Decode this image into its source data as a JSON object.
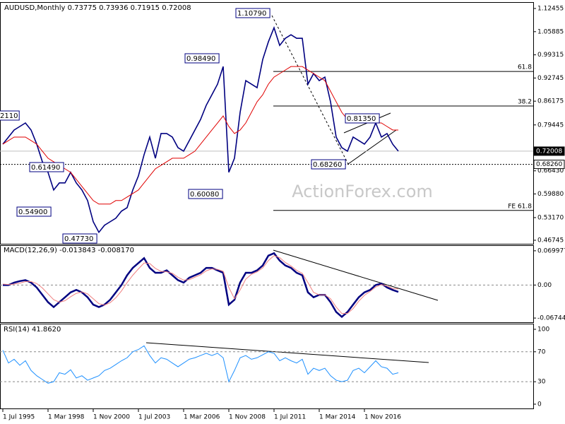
{
  "chart_data": [
    {
      "type": "line",
      "title": "AUDUSD,Monthly  0.73775 0.73936 0.71915 0.72008",
      "watermark": "ActionForex.com",
      "ylim": [
        0.4574,
        1.1406
      ],
      "yticks": [
        1.12455,
        1.05885,
        0.99315,
        0.92745,
        0.86175,
        0.79445,
        {
          "value": 0.6643,
          "label": "0.66430"
        },
        {
          "value": 0.5988,
          "label": "0.59880"
        },
        {
          "value": 0.5317,
          "label": "0.53170"
        },
        0.46745
      ],
      "series": [
        {
          "color": "#000080",
          "values": [
            0.74,
            0.76,
            0.78,
            0.79,
            0.8,
            0.78,
            0.74,
            0.69,
            0.66,
            0.61,
            0.63,
            0.63,
            0.66,
            0.63,
            0.61,
            0.58,
            0.52,
            0.49,
            0.51,
            0.52,
            0.53,
            0.55,
            0.56,
            0.61,
            0.65,
            0.71,
            0.76,
            0.7,
            0.77,
            0.77,
            0.76,
            0.73,
            0.72,
            0.75,
            0.78,
            0.81,
            0.85,
            0.88,
            0.91,
            0.96,
            0.66,
            0.7,
            0.83,
            0.92,
            0.91,
            0.9,
            0.98,
            1.03,
            1.07,
            1.02,
            1.04,
            1.05,
            1.04,
            1.04,
            0.91,
            0.94,
            0.92,
            0.93,
            0.86,
            0.76,
            0.73,
            0.72,
            0.76,
            0.75,
            0.74,
            0.76,
            0.8,
            0.76,
            0.77,
            0.74,
            0.72
          ]
        },
        {
          "color": "#e00000",
          "values": [
            0.74,
            0.75,
            0.76,
            0.76,
            0.76,
            0.75,
            0.74,
            0.72,
            0.7,
            0.69,
            0.68,
            0.67,
            0.66,
            0.64,
            0.62,
            0.6,
            0.58,
            0.57,
            0.57,
            0.57,
            0.58,
            0.58,
            0.59,
            0.6,
            0.61,
            0.63,
            0.65,
            0.67,
            0.68,
            0.69,
            0.7,
            0.7,
            0.7,
            0.71,
            0.72,
            0.74,
            0.76,
            0.78,
            0.8,
            0.82,
            0.79,
            0.77,
            0.78,
            0.8,
            0.83,
            0.86,
            0.88,
            0.91,
            0.93,
            0.94,
            0.95,
            0.96,
            0.96,
            0.96,
            0.95,
            0.94,
            0.93,
            0.92,
            0.89,
            0.86,
            0.83,
            0.81,
            0.8,
            0.8,
            0.8,
            0.8,
            0.8,
            0.8,
            0.79,
            0.78,
            0.78
          ]
        }
      ],
      "levels": [
        {
          "value": 0.946,
          "label": "61.8"
        },
        {
          "value": 0.848,
          "label": "38.2"
        },
        {
          "value": 0.552,
          "label": "FE 61.8"
        }
      ],
      "price_lines": [
        {
          "value": 0.72008,
          "label": "0.72008",
          "style": "current"
        },
        {
          "value": 0.6826,
          "label": "0.68260",
          "style": "dotted"
        }
      ],
      "annotations": [
        "2110",
        "0.61490",
        "0.54900",
        "0.47730",
        "0.98490",
        "0.60080",
        "1.10790",
        "0.68260",
        "0.81350"
      ]
    },
    {
      "type": "line",
      "title": "MACD(12,26,9) -0.013843 -0.008170",
      "ylim": [
        -0.076,
        0.0799
      ],
      "yticks": [
        0.069977,
        {
          "value": 0,
          "label": "0.00"
        },
        -0.067448
      ],
      "level_lines": [
        0
      ],
      "series": [
        {
          "color": "#000080",
          "values": [
            0,
            0,
            0.005,
            0.008,
            0.01,
            0.005,
            -0.005,
            -0.02,
            -0.035,
            -0.045,
            -0.035,
            -0.025,
            -0.015,
            -0.01,
            -0.015,
            -0.025,
            -0.04,
            -0.045,
            -0.04,
            -0.03,
            -0.015,
            0,
            0.02,
            0.035,
            0.045,
            0.055,
            0.035,
            0.025,
            0.025,
            0.03,
            0.02,
            0.01,
            0.005,
            0.015,
            0.02,
            0.025,
            0.035,
            0.035,
            0.03,
            0.025,
            -0.04,
            -0.03,
            0.005,
            0.025,
            0.025,
            0.03,
            0.04,
            0.06,
            0.065,
            0.05,
            0.04,
            0.035,
            0.025,
            0.02,
            -0.015,
            -0.025,
            -0.02,
            -0.02,
            -0.035,
            -0.055,
            -0.065,
            -0.055,
            -0.04,
            -0.025,
            -0.015,
            -0.01,
            0,
            0.003,
            -0.005,
            -0.01,
            -0.014
          ]
        },
        {
          "color": "#f08080",
          "values": [
            0.002,
            0.001,
            0.002,
            0.004,
            0.007,
            0.007,
            0.003,
            -0.006,
            -0.018,
            -0.03,
            -0.035,
            -0.032,
            -0.024,
            -0.017,
            -0.014,
            -0.018,
            -0.028,
            -0.038,
            -0.041,
            -0.036,
            -0.026,
            -0.012,
            0.005,
            0.02,
            0.033,
            0.045,
            0.044,
            0.034,
            0.028,
            0.027,
            0.024,
            0.016,
            0.01,
            0.011,
            0.016,
            0.021,
            0.029,
            0.033,
            0.032,
            0.028,
            -0.005,
            -0.028,
            -0.01,
            0.012,
            0.022,
            0.027,
            0.035,
            0.05,
            0.06,
            0.056,
            0.046,
            0.039,
            0.03,
            0.024,
            0.005,
            -0.015,
            -0.02,
            -0.02,
            -0.028,
            -0.045,
            -0.058,
            -0.058,
            -0.048,
            -0.033,
            -0.021,
            -0.013,
            -0.004,
            0.001,
            -0.002,
            -0.007,
            -0.008
          ]
        }
      ]
    },
    {
      "type": "line",
      "title": "RSI(14) 41.8620",
      "ylim": [
        -5.7,
        106.6
      ],
      "yticks": [
        100,
        70,
        30,
        0
      ],
      "level_lines": [
        70,
        30
      ],
      "categories": [
        "1 Jul 1995",
        null,
        null,
        null,
        null,
        null,
        null,
        null,
        "1 Mar 1998",
        null,
        null,
        null,
        null,
        null,
        null,
        null,
        "1 Nov 2000",
        null,
        null,
        null,
        null,
        null,
        null,
        null,
        "1 Jul 2003",
        null,
        null,
        null,
        null,
        null,
        null,
        null,
        "1 Mar 2006",
        null,
        null,
        null,
        null,
        null,
        null,
        null,
        "1 Nov 2008",
        null,
        null,
        null,
        null,
        null,
        null,
        null,
        "1 Jul 2011",
        null,
        null,
        null,
        null,
        null,
        null,
        null,
        "1 Mar 2014",
        null,
        null,
        null,
        null,
        null,
        null,
        null,
        "1 Nov 2016",
        null,
        null,
        null,
        null,
        null,
        null
      ],
      "series": [
        {
          "color": "#1e90ff",
          "values": [
            72,
            55,
            60,
            52,
            58,
            45,
            38,
            33,
            28,
            30,
            42,
            40,
            46,
            35,
            38,
            32,
            35,
            38,
            45,
            48,
            53,
            58,
            62,
            70,
            73,
            78,
            65,
            55,
            62,
            60,
            55,
            50,
            55,
            60,
            62,
            65,
            68,
            65,
            68,
            62,
            30,
            45,
            62,
            65,
            60,
            62,
            66,
            70,
            68,
            58,
            62,
            58,
            55,
            60,
            40,
            48,
            45,
            48,
            38,
            32,
            30,
            32,
            45,
            48,
            42,
            50,
            58,
            50,
            48,
            40,
            42
          ]
        }
      ]
    }
  ]
}
